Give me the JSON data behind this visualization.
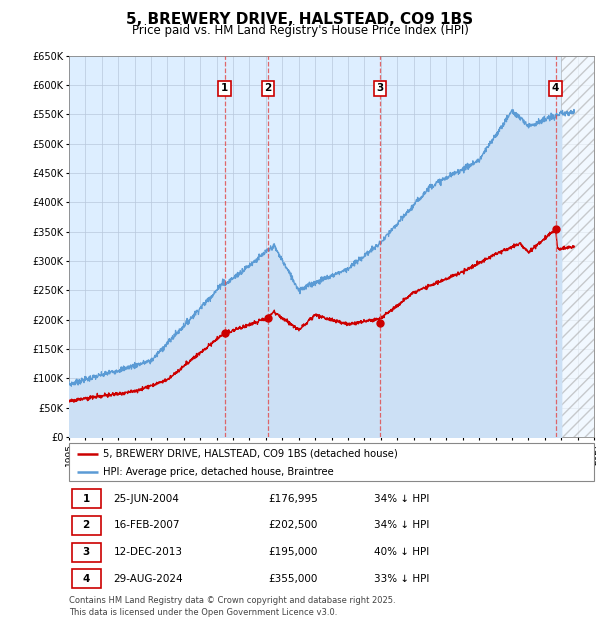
{
  "title": "5, BREWERY DRIVE, HALSTEAD, CO9 1BS",
  "subtitle": "Price paid vs. HM Land Registry's House Price Index (HPI)",
  "title_fontsize": 11,
  "subtitle_fontsize": 8.5,
  "ylim": [
    0,
    650000
  ],
  "yticks": [
    0,
    50000,
    100000,
    150000,
    200000,
    250000,
    300000,
    350000,
    400000,
    450000,
    500000,
    550000,
    600000,
    650000
  ],
  "ytick_labels": [
    "£0",
    "£50K",
    "£100K",
    "£150K",
    "£200K",
    "£250K",
    "£300K",
    "£350K",
    "£400K",
    "£450K",
    "£500K",
    "£550K",
    "£600K",
    "£650K"
  ],
  "xlim_start": 1995.0,
  "xlim_end": 2027.0,
  "xtick_years": [
    1995,
    1996,
    1997,
    1998,
    1999,
    2000,
    2001,
    2002,
    2003,
    2004,
    2005,
    2006,
    2007,
    2008,
    2009,
    2010,
    2011,
    2012,
    2013,
    2014,
    2015,
    2016,
    2017,
    2018,
    2019,
    2020,
    2021,
    2022,
    2023,
    2024,
    2025,
    2026,
    2027
  ],
  "hpi_color": "#5b9bd5",
  "hpi_fill_color": "#cce0f5",
  "price_color": "#cc0000",
  "bg_color": "#ddeeff",
  "grid_color": "#b8c8dc",
  "dashed_line_color": "#e05050",
  "sale_points": [
    {
      "year": 2004.483,
      "price": 176995,
      "label": "1"
    },
    {
      "year": 2007.124,
      "price": 202500,
      "label": "2"
    },
    {
      "year": 2013.945,
      "price": 195000,
      "label": "3"
    },
    {
      "year": 2024.662,
      "price": 355000,
      "label": "4"
    }
  ],
  "legend_entries": [
    {
      "label": "5, BREWERY DRIVE, HALSTEAD, CO9 1BS (detached house)",
      "color": "#cc0000"
    },
    {
      "label": "HPI: Average price, detached house, Braintree",
      "color": "#5b9bd5"
    }
  ],
  "table_rows": [
    {
      "num": "1",
      "date": "25-JUN-2004",
      "price": "£176,995",
      "pct": "34% ↓ HPI"
    },
    {
      "num": "2",
      "date": "16-FEB-2007",
      "price": "£202,500",
      "pct": "34% ↓ HPI"
    },
    {
      "num": "3",
      "date": "12-DEC-2013",
      "price": "£195,000",
      "pct": "40% ↓ HPI"
    },
    {
      "num": "4",
      "date": "29-AUG-2024",
      "price": "£355,000",
      "pct": "33% ↓ HPI"
    }
  ],
  "footnote": "Contains HM Land Registry data © Crown copyright and database right 2025.\nThis data is licensed under the Open Government Licence v3.0.",
  "future_start": 2025.0
}
